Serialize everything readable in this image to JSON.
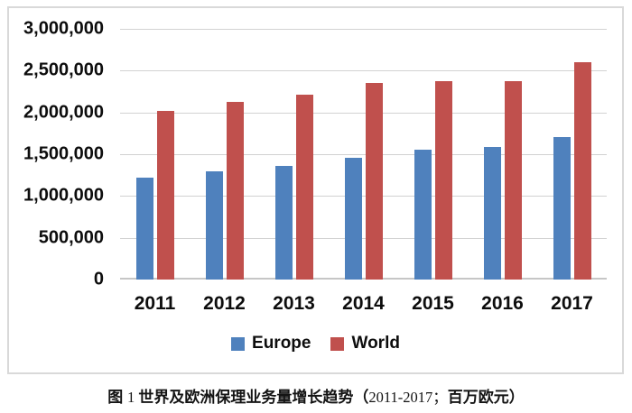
{
  "figure_caption": {
    "segments": [
      {
        "text": "图 ",
        "style": "zh"
      },
      {
        "text": "1 ",
        "style": "latin"
      },
      {
        "text": "世界及欧洲保理业务量增长趋势（",
        "style": "zh"
      },
      {
        "text": "2011-2017；",
        "style": "latin"
      },
      {
        "text": "百万欧元）",
        "style": "zh"
      }
    ]
  },
  "chart_data": {
    "type": "bar",
    "title": "",
    "xlabel": "",
    "ylabel": "",
    "categories": [
      "2011",
      "2012",
      "2013",
      "2014",
      "2015",
      "2016",
      "2017"
    ],
    "series": [
      {
        "name": "Europe",
        "color": "#4F81BD",
        "values": [
          1220000,
          1300000,
          1355000,
          1460000,
          1555000,
          1590000,
          1700000
        ]
      },
      {
        "name": "World",
        "color": "#C0504D",
        "values": [
          2015000,
          2130000,
          2210000,
          2350000,
          2370000,
          2375000,
          2600000
        ]
      }
    ],
    "ylim": [
      0,
      3000000
    ],
    "ytick_interval": 500000,
    "ytick_labels": [
      "0",
      "500,000",
      "1,000,000",
      "1,500,000",
      "2,000,000",
      "2,500,000",
      "3,000,000"
    ],
    "grid": true,
    "legend_position": "bottom"
  },
  "colors": {
    "europe_bar": "#4F81BD",
    "world_bar": "#C0504D",
    "gridline": "#D2D2D2",
    "baseline": "#C6C6C6",
    "frame_border": "#D9D9D9",
    "axis_text": "#0D0D0D",
    "background": "#FFFFFF"
  }
}
